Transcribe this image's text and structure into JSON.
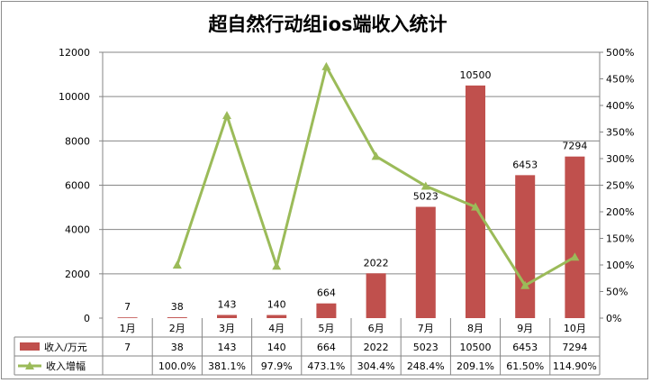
{
  "chart_data": {
    "type": "bar",
    "title": "超自然行动组ios端收入统计",
    "categories": [
      "1月",
      "2月",
      "3月",
      "4月",
      "5月",
      "6月",
      "7月",
      "8月",
      "9月",
      "10月"
    ],
    "series": [
      {
        "name": "收入/万元",
        "type": "bar",
        "axis": "left",
        "values": [
          7,
          38,
          143,
          140,
          664,
          2022,
          5023,
          10500,
          6453,
          7294
        ],
        "labels": [
          "7",
          "38",
          "143",
          "140",
          "664",
          "2022",
          "5023",
          "10500",
          "6453",
          "7294"
        ],
        "color": "#c0504d"
      },
      {
        "name": "收入增幅",
        "type": "line",
        "axis": "right",
        "values": [
          null,
          100.0,
          381.1,
          97.9,
          473.1,
          304.4,
          248.4,
          209.1,
          61.5,
          114.9
        ],
        "labels": [
          "",
          "100.0%",
          "381.1%",
          "97.9%",
          "473.1%",
          "304.4%",
          "248.4%",
          "209.1%",
          "61.50%",
          "114.90%"
        ],
        "color": "#9bbb59"
      }
    ],
    "y_left": {
      "min": 0,
      "max": 12000,
      "ticks": [
        "0",
        "2000",
        "4000",
        "6000",
        "8000",
        "10000",
        "12000"
      ]
    },
    "y_right": {
      "min": 0,
      "max": 500,
      "ticks": [
        "0%",
        "50%",
        "100%",
        "150%",
        "200%",
        "250%",
        "300%",
        "350%",
        "400%",
        "450%",
        "500%"
      ]
    },
    "grid": true,
    "legend": "data-table"
  }
}
